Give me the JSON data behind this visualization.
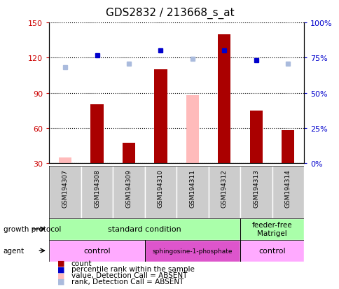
{
  "title": "GDS2832 / 213668_s_at",
  "samples": [
    "GSM194307",
    "GSM194308",
    "GSM194309",
    "GSM194310",
    "GSM194311",
    "GSM194312",
    "GSM194313",
    "GSM194314"
  ],
  "count_values": [
    null,
    80,
    47,
    110,
    null,
    140,
    75,
    58
  ],
  "count_absent_values": [
    35,
    null,
    null,
    null,
    null,
    null,
    null,
    null
  ],
  "percentile_rank": [
    null,
    122,
    null,
    126,
    null,
    126,
    118,
    null
  ],
  "percentile_rank_absent": [
    112,
    null,
    115,
    null,
    119,
    null,
    null,
    115
  ],
  "value_absent": [
    null,
    null,
    null,
    null,
    88,
    null,
    null,
    null
  ],
  "ylim_left": [
    30,
    150
  ],
  "ylim_right": [
    0,
    100
  ],
  "yticks_left": [
    30,
    60,
    90,
    120,
    150
  ],
  "yticks_right": [
    0,
    25,
    50,
    75,
    100
  ],
  "bar_color": "#aa0000",
  "bar_absent_color": "#ffbbbb",
  "rank_color": "#0000cc",
  "rank_absent_color": "#aabbdd",
  "growth_protocol_color": "#aaffaa",
  "agent_light_color": "#ffaaff",
  "agent_dark_color": "#dd55cc",
  "left_label_color": "#cc0000",
  "right_label_color": "#0000cc",
  "bg_color": "#ffffff",
  "plot_bg_color": "#ffffff",
  "grid_color": "#000000",
  "sample_box_color": "#cccccc"
}
